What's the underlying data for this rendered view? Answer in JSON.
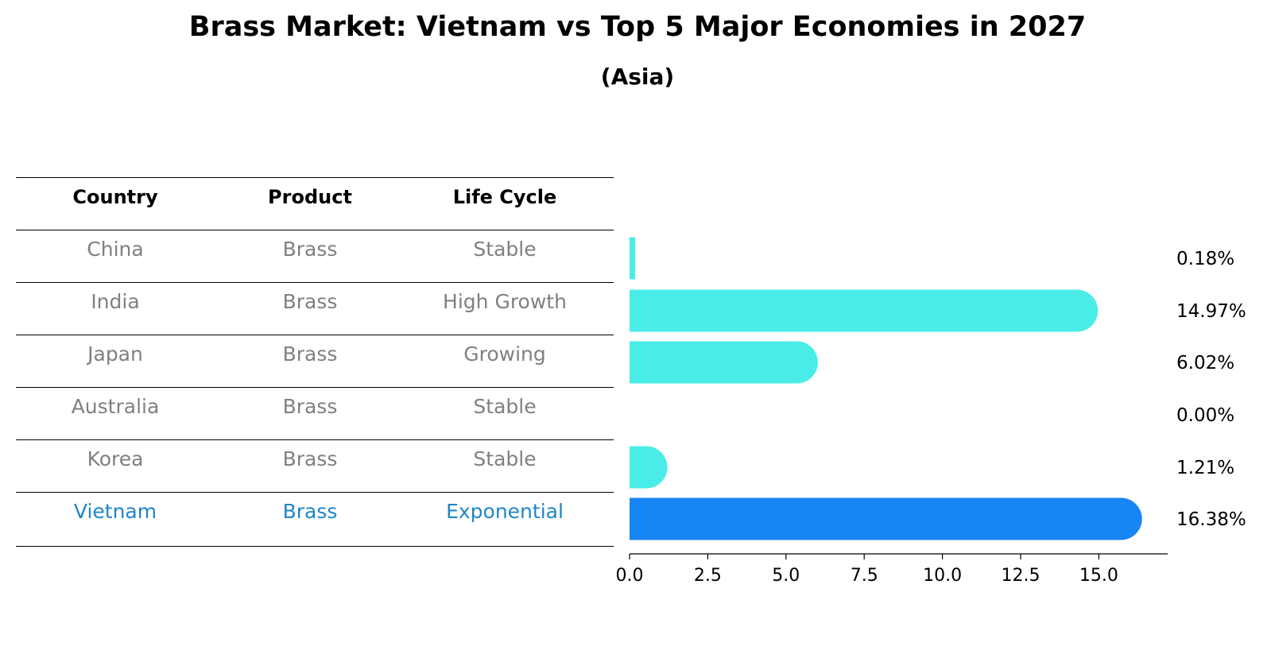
{
  "title": "Brass Market: Vietnam vs Top 5 Major Economies in 2027",
  "subtitle": "(Asia)",
  "table": {
    "headers": [
      "Country",
      "Product",
      "Life Cycle"
    ],
    "rows": [
      {
        "country": "China",
        "product": "Brass",
        "life_cycle": "Stable"
      },
      {
        "country": "India",
        "product": "Brass",
        "life_cycle": "High Growth"
      },
      {
        "country": "Japan",
        "product": "Brass",
        "life_cycle": "Growing"
      },
      {
        "country": "Australia",
        "product": "Brass",
        "life_cycle": "Stable"
      },
      {
        "country": "Korea",
        "product": "Brass",
        "life_cycle": "Stable"
      },
      {
        "country": "Vietnam",
        "product": "Brass",
        "life_cycle": "Exponential"
      }
    ],
    "highlight_row": "Vietnam"
  },
  "colors": {
    "bar": "#4aece8",
    "highlight_bar": "#1785f3",
    "text_muted": "#808080",
    "text_highlight": "#1f86c8"
  },
  "chart_data": {
    "type": "bar",
    "orientation": "horizontal",
    "categories": [
      "China",
      "India",
      "Japan",
      "Australia",
      "Korea",
      "Vietnam"
    ],
    "values": [
      0.18,
      14.97,
      6.02,
      0.0,
      1.21,
      16.38
    ],
    "value_labels": [
      "0.18%",
      "14.97%",
      "6.02%",
      "0.00%",
      "1.21%",
      "16.38%"
    ],
    "xlim": [
      0,
      17.2
    ],
    "xticks": [
      0.0,
      2.5,
      5.0,
      7.5,
      10.0,
      12.5,
      15.0
    ],
    "xtick_labels": [
      "0.0",
      "2.5",
      "5.0",
      "7.5",
      "10.0",
      "12.5",
      "15.0"
    ],
    "highlight": "Vietnam",
    "grid": false,
    "legend": "none"
  }
}
